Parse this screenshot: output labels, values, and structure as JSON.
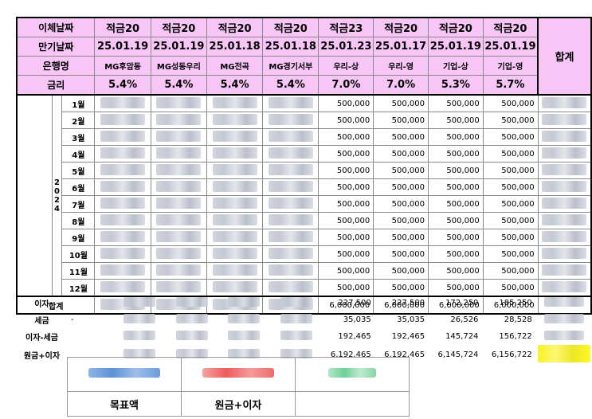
{
  "header": {
    "row_labels": [
      "이체날짜",
      "만기날짜",
      "은행명",
      "금리"
    ],
    "total_label": "합계",
    "columns": [
      {
        "type": "적금20",
        "maturity": "25.01.19",
        "bank": "MG후암동",
        "rate": "5.4%"
      },
      {
        "type": "적금20",
        "maturity": "25.01.19",
        "bank": "MG성동우리",
        "rate": "5.4%"
      },
      {
        "type": "적금20",
        "maturity": "25.01.18",
        "bank": "MG전곡",
        "rate": "5.4%"
      },
      {
        "type": "적금20",
        "maturity": "25.01.18",
        "bank": "MG경기서부",
        "rate": "5.4%"
      },
      {
        "type": "적금23",
        "maturity": "25.01.23",
        "bank": "우리-상",
        "rate": "7.0%"
      },
      {
        "type": "적금20",
        "maturity": "25.01.17",
        "bank": "우리-영",
        "rate": "7.0%"
      },
      {
        "type": "적금20",
        "maturity": "25.01.19",
        "bank": "기업-상",
        "rate": "5.3%"
      },
      {
        "type": "적금20",
        "maturity": "25.01.19",
        "bank": "기업-영",
        "rate": "5.7%"
      }
    ]
  },
  "year_label": "2024",
  "months": [
    "1월",
    "2월",
    "3월",
    "4월",
    "5월",
    "6월",
    "7월",
    "8월",
    "9월",
    "10월",
    "11월",
    "12월"
  ],
  "monthly_amount": "500,000",
  "sum_row": {
    "label": "합계",
    "values": [
      "6,000,000",
      "6,000,000",
      "6,000,000",
      "6,000,000"
    ]
  },
  "below": {
    "interest": {
      "label": "이자",
      "values": [
        "227,500",
        "227,500",
        "172,250",
        "185,250"
      ]
    },
    "tax": {
      "label": "세금",
      "values": [
        "35,035",
        "35,035",
        "26,526",
        "28,528"
      ],
      "dash": "-"
    },
    "net_interest": {
      "label": "이자-세금",
      "values": [
        "192,465",
        "192,465",
        "145,724",
        "156,722"
      ]
    },
    "principal_interest": {
      "label": "원금+이자",
      "values": [
        "6,192,465",
        "6,192,465",
        "6,145,724",
        "6,156,722"
      ]
    }
  },
  "summary": {
    "labels": [
      "목표액",
      "원금+이자"
    ]
  }
}
